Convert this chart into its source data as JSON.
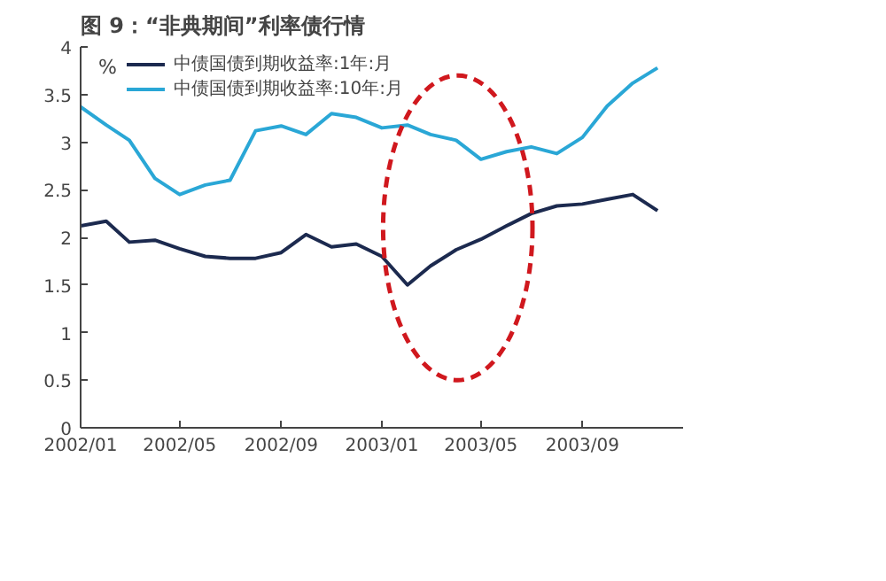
{
  "chart_data": {
    "type": "line",
    "title": "图 9：“非典期间”利率债行情",
    "ylabel": "%",
    "x": [
      "2002-01",
      "2002-02",
      "2002-03",
      "2002-04",
      "2002-05",
      "2002-06",
      "2002-07",
      "2002-08",
      "2002-09",
      "2002-10",
      "2002-11",
      "2002-12",
      "2003-01",
      "2003-02",
      "2003-03",
      "2003-04",
      "2003-05",
      "2003-06",
      "2003-07",
      "2003-08",
      "2003-09",
      "2003-10",
      "2003-11",
      "2003-12"
    ],
    "series": [
      {
        "name": "中债国债到期收益率:1年:月",
        "color": "#1c2a4f",
        "values": [
          2.12,
          2.17,
          1.95,
          1.97,
          1.88,
          1.8,
          1.78,
          1.78,
          1.84,
          2.03,
          1.9,
          1.93,
          1.8,
          1.5,
          1.7,
          1.87,
          1.98,
          2.12,
          2.25,
          2.33,
          2.35,
          2.4,
          2.45,
          2.28
        ]
      },
      {
        "name": "中债国债到期收益率:10年:月",
        "color": "#2aa7d6",
        "values": [
          3.37,
          3.18,
          3.02,
          2.62,
          2.45,
          2.55,
          2.6,
          3.12,
          3.17,
          3.08,
          3.3,
          3.26,
          3.15,
          3.18,
          3.08,
          3.02,
          2.82,
          2.9,
          2.95,
          2.88,
          3.05,
          3.38,
          3.62,
          3.78
        ]
      }
    ],
    "xlim": [
      "2002-01",
      "2004-01"
    ],
    "xticks": [
      {
        "value": "2002-01",
        "label": "2002/01"
      },
      {
        "value": "2002-05",
        "label": "2002/05"
      },
      {
        "value": "2002-09",
        "label": "2002/09"
      },
      {
        "value": "2003-01",
        "label": "2003/01"
      },
      {
        "value": "2003-05",
        "label": "2003/05"
      },
      {
        "value": "2003-09",
        "label": "2003/09"
      }
    ],
    "ylim": [
      0,
      4
    ],
    "yticks": [
      0,
      0.5,
      1,
      1.5,
      2,
      2.5,
      3,
      3.5,
      4
    ],
    "grid": false,
    "legend": "top left",
    "marker": "none",
    "line_style": "solid"
  }
}
